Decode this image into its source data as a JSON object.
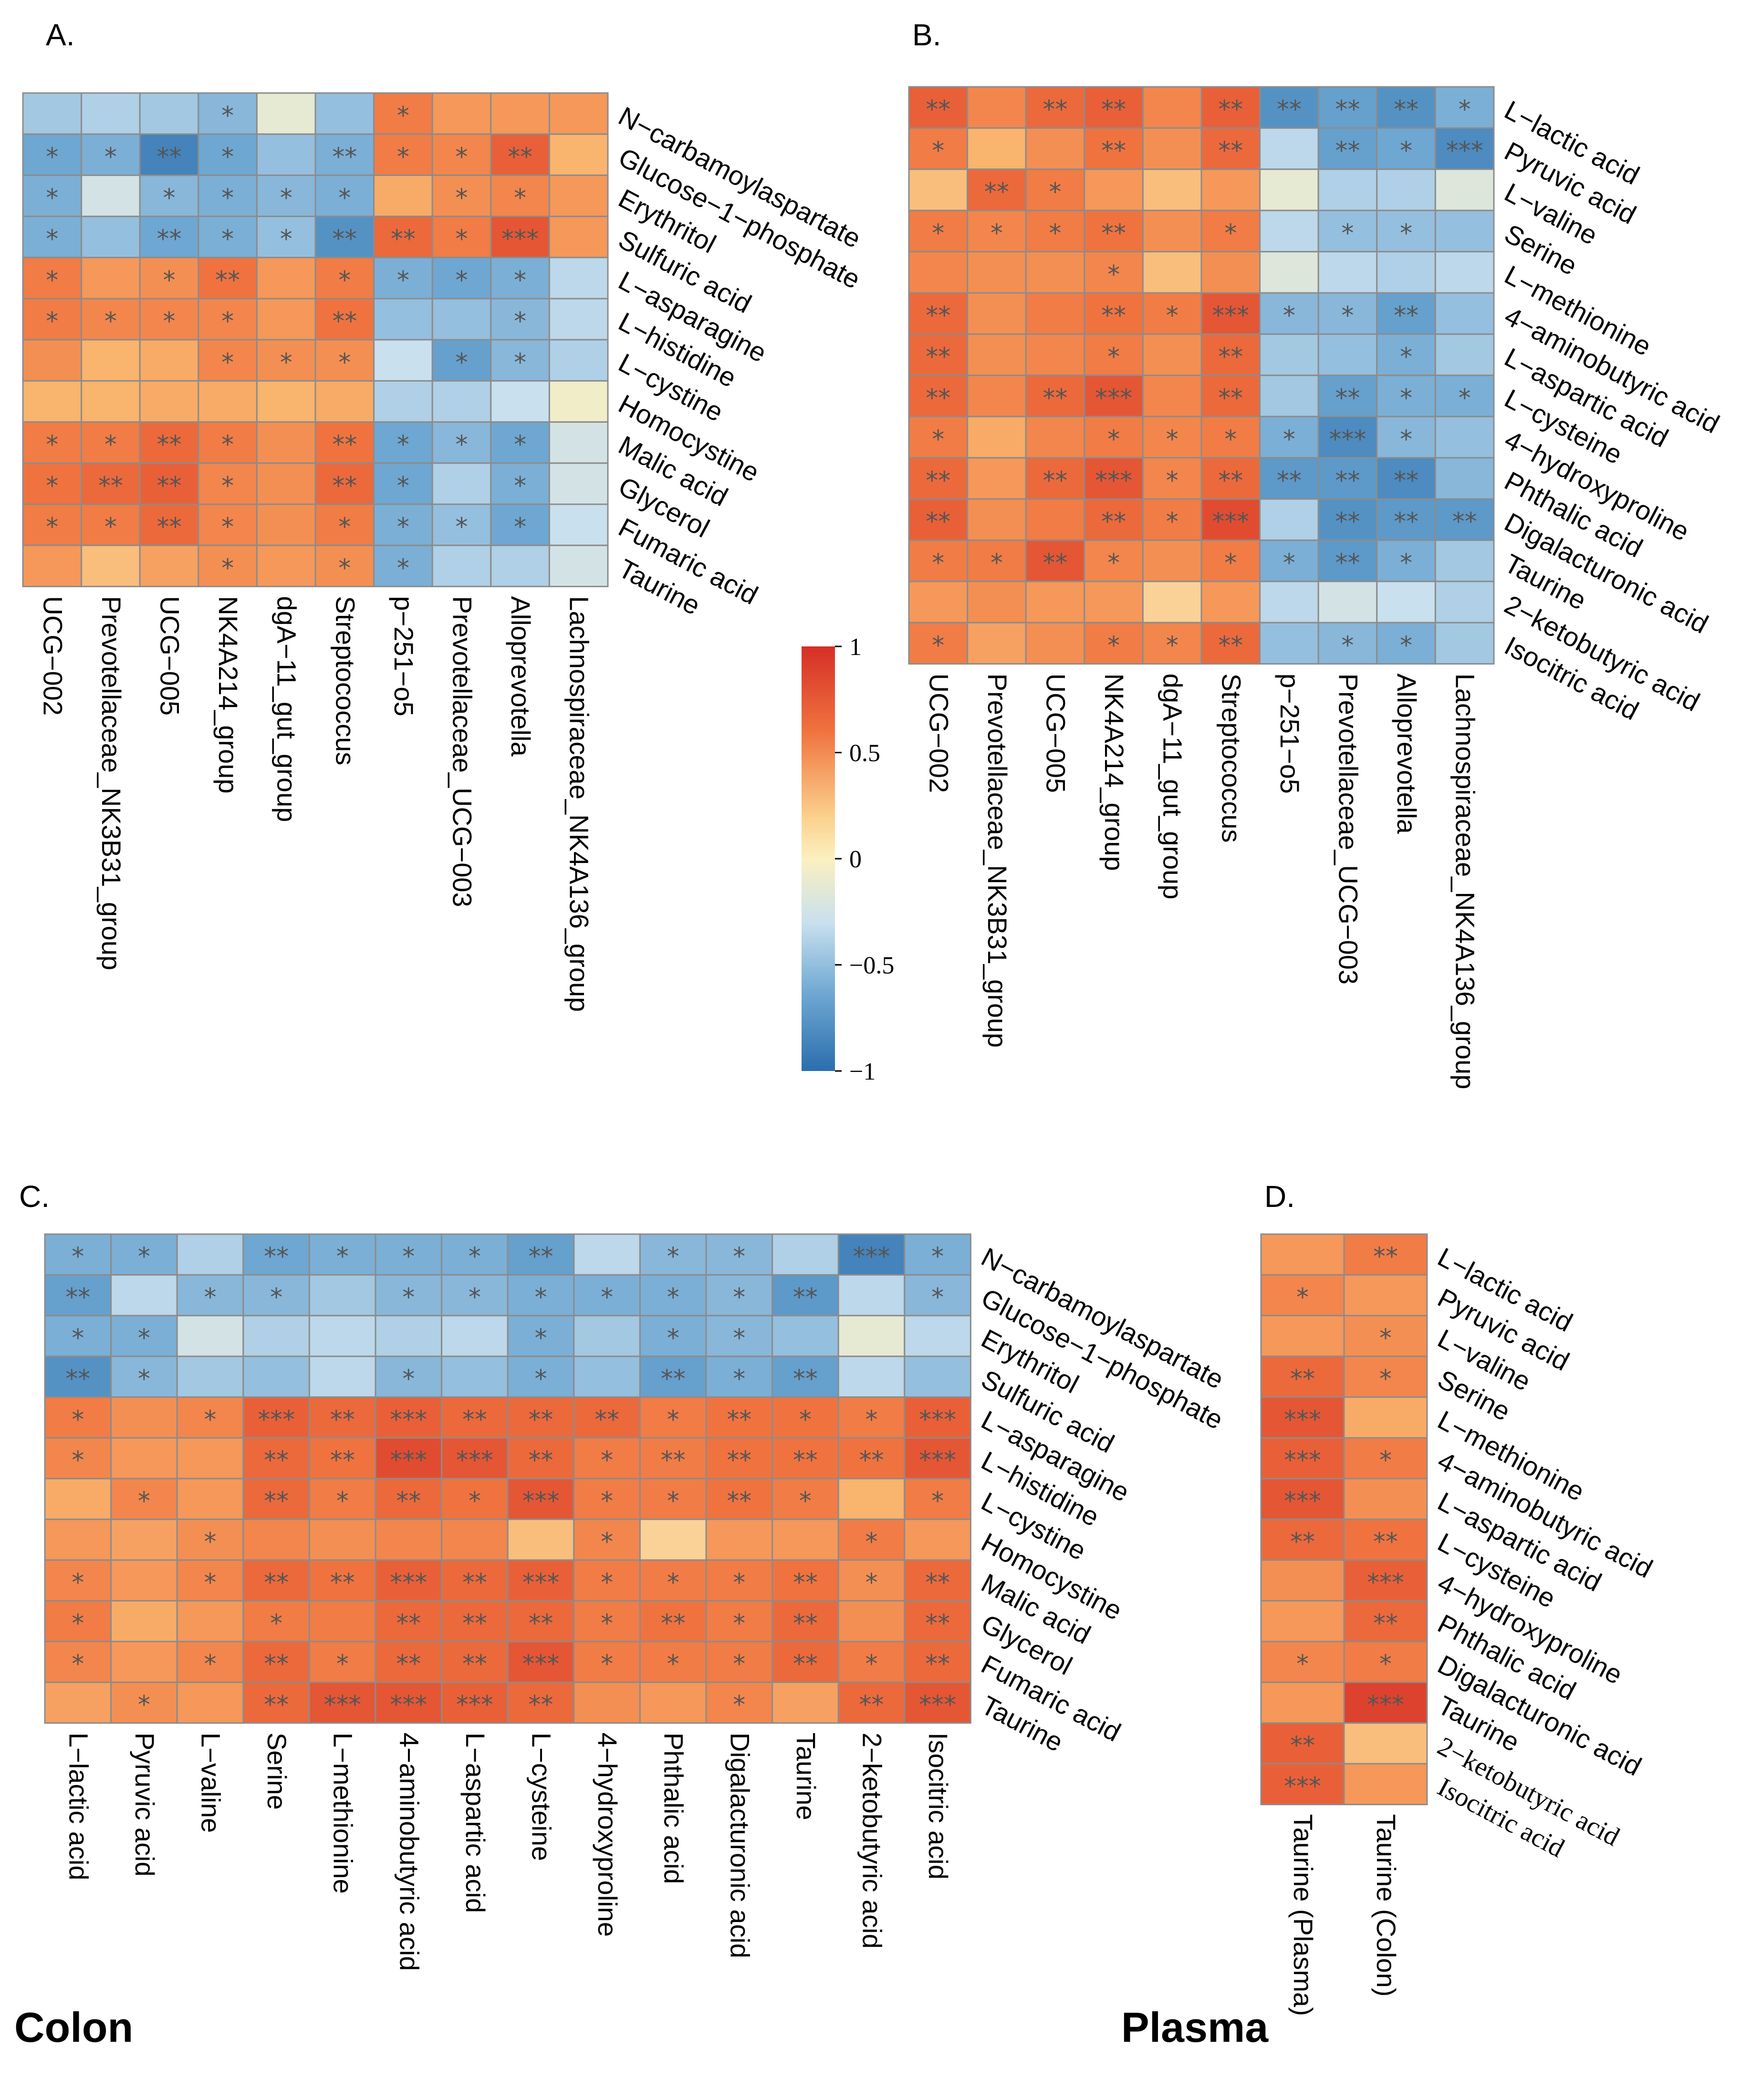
{
  "colors": {
    "low": "#2b6ead",
    "lowmid": "#6ea7d2",
    "midlow": "#c9e0ee",
    "mid": "#fbf0bf",
    "midhigh": "#f9b46e",
    "highmid": "#f0733f",
    "high": "#d62f27",
    "grid": "#8c8c8c",
    "star": "#555555"
  },
  "regions": {
    "colon": "Colon",
    "plasma": "Plasma"
  },
  "chart_data": [
    {
      "panel": "A.",
      "type": "heatmap",
      "columns": [
        "UCG−002",
        "Prevotellaceae_NK3B31_group",
        "UCG−005",
        "NK4A214_group",
        "dgA−11_gut_group",
        "Streptococcus",
        "p−251−o5",
        "Prevotellaceae_UCG−003",
        "Alloprevotella",
        "Lachnospiraceae_NK4A136_group"
      ],
      "rows": [
        "N−carbamoylaspartate",
        "Glucose−1−phosphate",
        "Erythritol",
        "Sulfuric acid",
        "L−asparagine",
        "L−histidine",
        "L−cystine",
        "Homocystine",
        "Malic acid",
        "Glycerol",
        "Fumaric acid",
        "Taurine"
      ],
      "values": [
        [
          -0.4,
          -0.35,
          -0.4,
          -0.5,
          -0.1,
          -0.45,
          0.6,
          0.45,
          0.45,
          0.45
        ],
        [
          -0.6,
          -0.55,
          -0.85,
          -0.6,
          -0.45,
          -0.55,
          0.6,
          0.55,
          0.75,
          0.3
        ],
        [
          -0.55,
          -0.2,
          -0.5,
          -0.55,
          -0.5,
          -0.55,
          0.35,
          0.5,
          0.55,
          0.45
        ],
        [
          -0.55,
          -0.45,
          -0.6,
          -0.55,
          -0.45,
          -0.75,
          0.7,
          0.6,
          0.8,
          0.45
        ],
        [
          0.6,
          0.45,
          0.5,
          0.65,
          0.45,
          0.6,
          -0.55,
          -0.6,
          -0.55,
          -0.3
        ],
        [
          0.6,
          0.55,
          0.55,
          0.55,
          0.45,
          0.65,
          -0.45,
          -0.45,
          -0.5,
          -0.3
        ],
        [
          0.5,
          0.3,
          0.35,
          0.55,
          0.5,
          0.5,
          -0.25,
          -0.65,
          -0.5,
          -0.35
        ],
        [
          0.3,
          0.3,
          0.35,
          0.35,
          0.3,
          0.35,
          -0.35,
          -0.35,
          -0.25,
          -0.05
        ],
        [
          0.6,
          0.6,
          0.7,
          0.6,
          0.5,
          0.65,
          -0.6,
          -0.5,
          -0.6,
          -0.2
        ],
        [
          0.65,
          0.7,
          0.75,
          0.55,
          0.5,
          0.7,
          -0.6,
          -0.35,
          -0.55,
          -0.2
        ],
        [
          0.6,
          0.6,
          0.7,
          0.55,
          0.5,
          0.6,
          -0.55,
          -0.45,
          -0.6,
          -0.25
        ],
        [
          0.45,
          0.25,
          0.4,
          0.5,
          0.45,
          0.5,
          -0.55,
          -0.35,
          -0.35,
          -0.2
        ]
      ],
      "stars": [
        [
          "",
          "",
          "",
          "*",
          "",
          "",
          "*",
          "",
          "",
          ""
        ],
        [
          "*",
          "*",
          "**",
          "*",
          "",
          "**",
          "*",
          "*",
          "**",
          ""
        ],
        [
          "*",
          "",
          "*",
          "*",
          "*",
          "*",
          "",
          "*",
          "*",
          ""
        ],
        [
          "*",
          "",
          "**",
          "*",
          "*",
          "**",
          "**",
          "*",
          "***",
          ""
        ],
        [
          "*",
          "",
          "*",
          "**",
          "",
          "*",
          "*",
          "*",
          "*",
          ""
        ],
        [
          "*",
          "*",
          "*",
          "*",
          "",
          "**",
          "",
          "",
          "*",
          ""
        ],
        [
          "",
          "",
          "",
          "*",
          "*",
          "*",
          "",
          "*",
          "*",
          ""
        ],
        [
          "",
          "",
          "",
          "",
          "",
          "",
          "",
          "",
          "",
          ""
        ],
        [
          "*",
          "*",
          "**",
          "*",
          "",
          "**",
          "*",
          "*",
          "*",
          ""
        ],
        [
          "*",
          "**",
          "**",
          "*",
          "",
          "**",
          "*",
          "",
          "*",
          ""
        ],
        [
          "*",
          "*",
          "**",
          "*",
          "",
          "*",
          "*",
          "*",
          "*",
          ""
        ],
        [
          "",
          "",
          "",
          "*",
          "",
          "*",
          "*",
          "",
          "",
          ""
        ]
      ]
    },
    {
      "panel": "B.",
      "type": "heatmap",
      "columns": [
        "UCG−002",
        "Prevotellaceae_NK3B31_group",
        "UCG−005",
        "NK4A214_group",
        "dgA−11_gut_group",
        "Streptococcus",
        "p−251−o5",
        "Prevotellaceae_UCG−003",
        "Alloprevotella",
        "Lachnospiraceae_NK4A136_group"
      ],
      "rows": [
        "L−lactic acid",
        "Pyruvic acid",
        "L−valine",
        "Serine",
        "L−methionine",
        "4−aminobutyric acid",
        "L−aspartic acid",
        "L−cysteine",
        "4−hydroxyproline",
        "Phthalic acid",
        "Digalacturonic acid",
        "Taurine",
        "2−ketobutyric acid",
        "Isocitric acid"
      ],
      "values": [
        [
          0.75,
          0.55,
          0.7,
          0.75,
          0.55,
          0.75,
          -0.75,
          -0.65,
          -0.75,
          -0.55
        ],
        [
          0.6,
          0.3,
          0.5,
          0.65,
          0.5,
          0.7,
          -0.3,
          -0.65,
          -0.6,
          -0.8
        ],
        [
          0.25,
          0.7,
          0.6,
          0.45,
          0.25,
          0.45,
          -0.1,
          -0.35,
          -0.35,
          -0.15
        ],
        [
          0.6,
          0.55,
          0.6,
          0.65,
          0.5,
          0.6,
          -0.3,
          -0.45,
          -0.45,
          -0.45
        ],
        [
          0.55,
          0.5,
          0.5,
          0.55,
          0.25,
          0.5,
          -0.15,
          -0.3,
          -0.35,
          -0.3
        ],
        [
          0.7,
          0.5,
          0.6,
          0.65,
          0.6,
          0.8,
          -0.5,
          -0.5,
          -0.65,
          -0.45
        ],
        [
          0.7,
          0.5,
          0.55,
          0.6,
          0.5,
          0.7,
          -0.4,
          -0.45,
          -0.55,
          -0.4
        ],
        [
          0.7,
          0.55,
          0.7,
          0.8,
          0.55,
          0.7,
          -0.4,
          -0.65,
          -0.55,
          -0.55
        ],
        [
          0.6,
          0.35,
          0.55,
          0.6,
          0.55,
          0.6,
          -0.55,
          -0.8,
          -0.5,
          -0.45
        ],
        [
          0.7,
          0.45,
          0.7,
          0.8,
          0.55,
          0.7,
          -0.7,
          -0.7,
          -0.8,
          -0.5
        ],
        [
          0.75,
          0.5,
          0.6,
          0.7,
          0.6,
          0.85,
          -0.35,
          -0.75,
          -0.7,
          -0.7
        ],
        [
          0.6,
          0.6,
          0.8,
          0.55,
          0.5,
          0.6,
          -0.55,
          -0.7,
          -0.55,
          -0.4
        ],
        [
          0.45,
          0.5,
          0.45,
          0.45,
          0.15,
          0.45,
          -0.3,
          -0.2,
          -0.25,
          -0.35
        ],
        [
          0.6,
          0.4,
          0.5,
          0.6,
          0.55,
          0.7,
          -0.45,
          -0.5,
          -0.55,
          -0.4
        ]
      ],
      "stars": [
        [
          "**",
          "",
          "**",
          "**",
          "",
          "**",
          "**",
          "**",
          "**",
          "*"
        ],
        [
          "*",
          "",
          "",
          "**",
          "",
          "**",
          "",
          "**",
          "*",
          "***"
        ],
        [
          "",
          "**",
          "*",
          "",
          "",
          "",
          "",
          "",
          "",
          ""
        ],
        [
          "*",
          "*",
          "*",
          "**",
          "",
          "*",
          "",
          "*",
          "*",
          ""
        ],
        [
          "",
          "",
          "",
          "*",
          "",
          "",
          "",
          "",
          "",
          ""
        ],
        [
          "**",
          "",
          "",
          "**",
          "*",
          "***",
          "*",
          "*",
          "**",
          ""
        ],
        [
          "**",
          "",
          "",
          "*",
          "",
          "**",
          "",
          "",
          "*",
          ""
        ],
        [
          "**",
          "",
          "**",
          "***",
          "",
          "**",
          "",
          "**",
          "*",
          "*"
        ],
        [
          "*",
          "",
          "",
          "*",
          "*",
          "*",
          "*",
          "***",
          "*",
          ""
        ],
        [
          "**",
          "",
          "**",
          "***",
          "*",
          "**",
          "**",
          "**",
          "**",
          ""
        ],
        [
          "**",
          "",
          "",
          "**",
          "*",
          "***",
          "",
          "**",
          "**",
          "**"
        ],
        [
          "*",
          "*",
          "**",
          "*",
          "",
          "*",
          "*",
          "**",
          "*",
          ""
        ],
        [
          "",
          "",
          "",
          "",
          "",
          "",
          "",
          "",
          "",
          ""
        ],
        [
          "*",
          "",
          "",
          "*",
          "*",
          "**",
          "",
          "*",
          "*",
          ""
        ]
      ]
    },
    {
      "panel": "C.",
      "type": "heatmap",
      "columns": [
        "L−lactic acid",
        "Pyruvic acid",
        "L−valine",
        "Serine",
        "L−methionine",
        "4−aminobutyric acid",
        "L−aspartic acid",
        "L−cysteine",
        "4−hydroxyproline",
        "Phthalic acid",
        "Digalacturonic acid",
        "Taurine",
        "2−ketobutyric acid",
        "Isocitric acid"
      ],
      "rows": [
        "N−carbamoylaspartate",
        "Glucose−1−phosphate",
        "Erythritol",
        "Sulfuric acid",
        "L−asparagine",
        "L−histidine",
        "L−cystine",
        "Homocystine",
        "Malic acid",
        "Glycerol",
        "Fumaric acid",
        "Taurine"
      ],
      "values": [
        [
          -0.55,
          -0.55,
          -0.35,
          -0.6,
          -0.55,
          -0.55,
          -0.55,
          -0.65,
          -0.3,
          -0.5,
          -0.5,
          -0.35,
          -0.85,
          -0.55
        ],
        [
          -0.65,
          -0.3,
          -0.5,
          -0.5,
          -0.4,
          -0.5,
          -0.5,
          -0.55,
          -0.55,
          -0.55,
          -0.5,
          -0.7,
          -0.3,
          -0.5
        ],
        [
          -0.55,
          -0.55,
          -0.2,
          -0.35,
          -0.3,
          -0.35,
          -0.3,
          -0.55,
          -0.4,
          -0.55,
          -0.5,
          -0.45,
          -0.1,
          -0.3
        ],
        [
          -0.75,
          -0.5,
          -0.4,
          -0.45,
          -0.3,
          -0.5,
          -0.45,
          -0.55,
          -0.45,
          -0.65,
          -0.55,
          -0.65,
          -0.3,
          -0.45
        ],
        [
          0.6,
          0.5,
          0.55,
          0.75,
          0.7,
          0.75,
          0.7,
          0.7,
          0.7,
          0.6,
          0.65,
          0.65,
          0.6,
          0.75
        ],
        [
          0.55,
          0.45,
          0.45,
          0.7,
          0.65,
          0.85,
          0.8,
          0.7,
          0.6,
          0.6,
          0.65,
          0.65,
          0.65,
          0.8
        ],
        [
          0.35,
          0.55,
          0.45,
          0.7,
          0.6,
          0.7,
          0.65,
          0.8,
          0.6,
          0.6,
          0.65,
          0.6,
          0.3,
          0.6
        ],
        [
          0.45,
          0.4,
          0.5,
          0.55,
          0.5,
          0.55,
          0.55,
          0.25,
          0.55,
          0.15,
          0.45,
          0.45,
          0.6,
          0.45
        ],
        [
          0.55,
          0.45,
          0.55,
          0.7,
          0.65,
          0.75,
          0.7,
          0.75,
          0.6,
          0.6,
          0.6,
          0.65,
          0.5,
          0.7
        ],
        [
          0.6,
          0.35,
          0.45,
          0.6,
          0.6,
          0.7,
          0.7,
          0.7,
          0.6,
          0.65,
          0.6,
          0.7,
          0.5,
          0.7
        ],
        [
          0.55,
          0.45,
          0.55,
          0.7,
          0.6,
          0.7,
          0.7,
          0.8,
          0.6,
          0.6,
          0.6,
          0.7,
          0.6,
          0.7
        ],
        [
          0.4,
          0.5,
          0.45,
          0.7,
          0.8,
          0.8,
          0.75,
          0.7,
          0.5,
          0.45,
          0.55,
          0.4,
          0.7,
          0.8
        ]
      ],
      "stars": [
        [
          "*",
          "*",
          "",
          "**",
          "*",
          "*",
          "*",
          "**",
          "",
          "*",
          "*",
          "",
          "***",
          "*"
        ],
        [
          "**",
          "",
          "*",
          "*",
          "",
          "*",
          "*",
          "*",
          "*",
          "*",
          "*",
          "**",
          "",
          "*"
        ],
        [
          "*",
          "*",
          "",
          "",
          "",
          "",
          "",
          "*",
          "",
          "*",
          "*",
          "",
          "",
          ""
        ],
        [
          "**",
          "*",
          "",
          "",
          "",
          "*",
          "",
          "*",
          "",
          "**",
          "*",
          "**",
          "",
          ""
        ],
        [
          "*",
          "",
          "*",
          "***",
          "**",
          "***",
          "**",
          "**",
          "**",
          "*",
          "**",
          "*",
          "*",
          "***"
        ],
        [
          "*",
          "",
          "",
          "**",
          "**",
          "***",
          "***",
          "**",
          "*",
          "**",
          "**",
          "**",
          "**",
          "***"
        ],
        [
          "",
          "*",
          "",
          "**",
          "*",
          "**",
          "*",
          "***",
          "*",
          "*",
          "**",
          "*",
          "",
          "*"
        ],
        [
          "",
          "",
          "*",
          "",
          "",
          "",
          "",
          "",
          "*",
          "",
          "",
          "",
          "*",
          ""
        ],
        [
          "*",
          "",
          "*",
          "**",
          "**",
          "***",
          "**",
          "***",
          "*",
          "*",
          "*",
          "**",
          "*",
          "**"
        ],
        [
          "*",
          "",
          "",
          "*",
          "",
          "**",
          "**",
          "**",
          "*",
          "**",
          "*",
          "**",
          "",
          "**"
        ],
        [
          "*",
          "",
          "*",
          "**",
          "*",
          "**",
          "**",
          "***",
          "*",
          "*",
          "*",
          "**",
          "*",
          "**"
        ],
        [
          "",
          "*",
          "",
          "**",
          "***",
          "***",
          "***",
          "**",
          "",
          "",
          "*",
          "",
          "**",
          "***"
        ]
      ]
    },
    {
      "panel": "D.",
      "type": "heatmap",
      "columns": [
        "Taurine (Plasma)",
        "Taurine (Colon)"
      ],
      "rows": [
        "L−lactic acid",
        "Pyruvic acid",
        "L−valine",
        "Serine",
        "L−methionine",
        "4−aminobutyric acid",
        "L−aspartic acid",
        "L−cysteine",
        "4−hydroxyproline",
        "Phthalic acid",
        "Digalacturonic acid",
        "Taurine",
        "2−ketobutyric acid",
        "Isocitric acid"
      ],
      "values": [
        [
          0.45,
          0.6
        ],
        [
          0.55,
          0.45
        ],
        [
          0.45,
          0.5
        ],
        [
          0.7,
          0.55
        ],
        [
          0.8,
          0.35
        ],
        [
          0.75,
          0.6
        ],
        [
          0.8,
          0.5
        ],
        [
          0.7,
          0.65
        ],
        [
          0.5,
          0.75
        ],
        [
          0.45,
          0.7
        ],
        [
          0.55,
          0.6
        ],
        [
          0.45,
          0.9
        ],
        [
          0.75,
          0.25
        ],
        [
          0.75,
          0.45
        ]
      ],
      "stars": [
        [
          "",
          "**"
        ],
        [
          "*",
          ""
        ],
        [
          "",
          "*"
        ],
        [
          "**",
          "*"
        ],
        [
          "***",
          ""
        ],
        [
          "***",
          "*"
        ],
        [
          "***",
          ""
        ],
        [
          "**",
          "**"
        ],
        [
          "",
          "***"
        ],
        [
          "",
          "**"
        ],
        [
          "*",
          "*"
        ],
        [
          "",
          "***"
        ],
        [
          "**",
          ""
        ],
        [
          "***",
          ""
        ]
      ]
    }
  ],
  "legend": {
    "ticks": [
      "1",
      "0.5",
      "0",
      "−0.5",
      "−1"
    ],
    "tick_values": [
      1,
      0.5,
      0,
      -0.5,
      -1
    ],
    "range": [
      -1,
      1
    ]
  }
}
